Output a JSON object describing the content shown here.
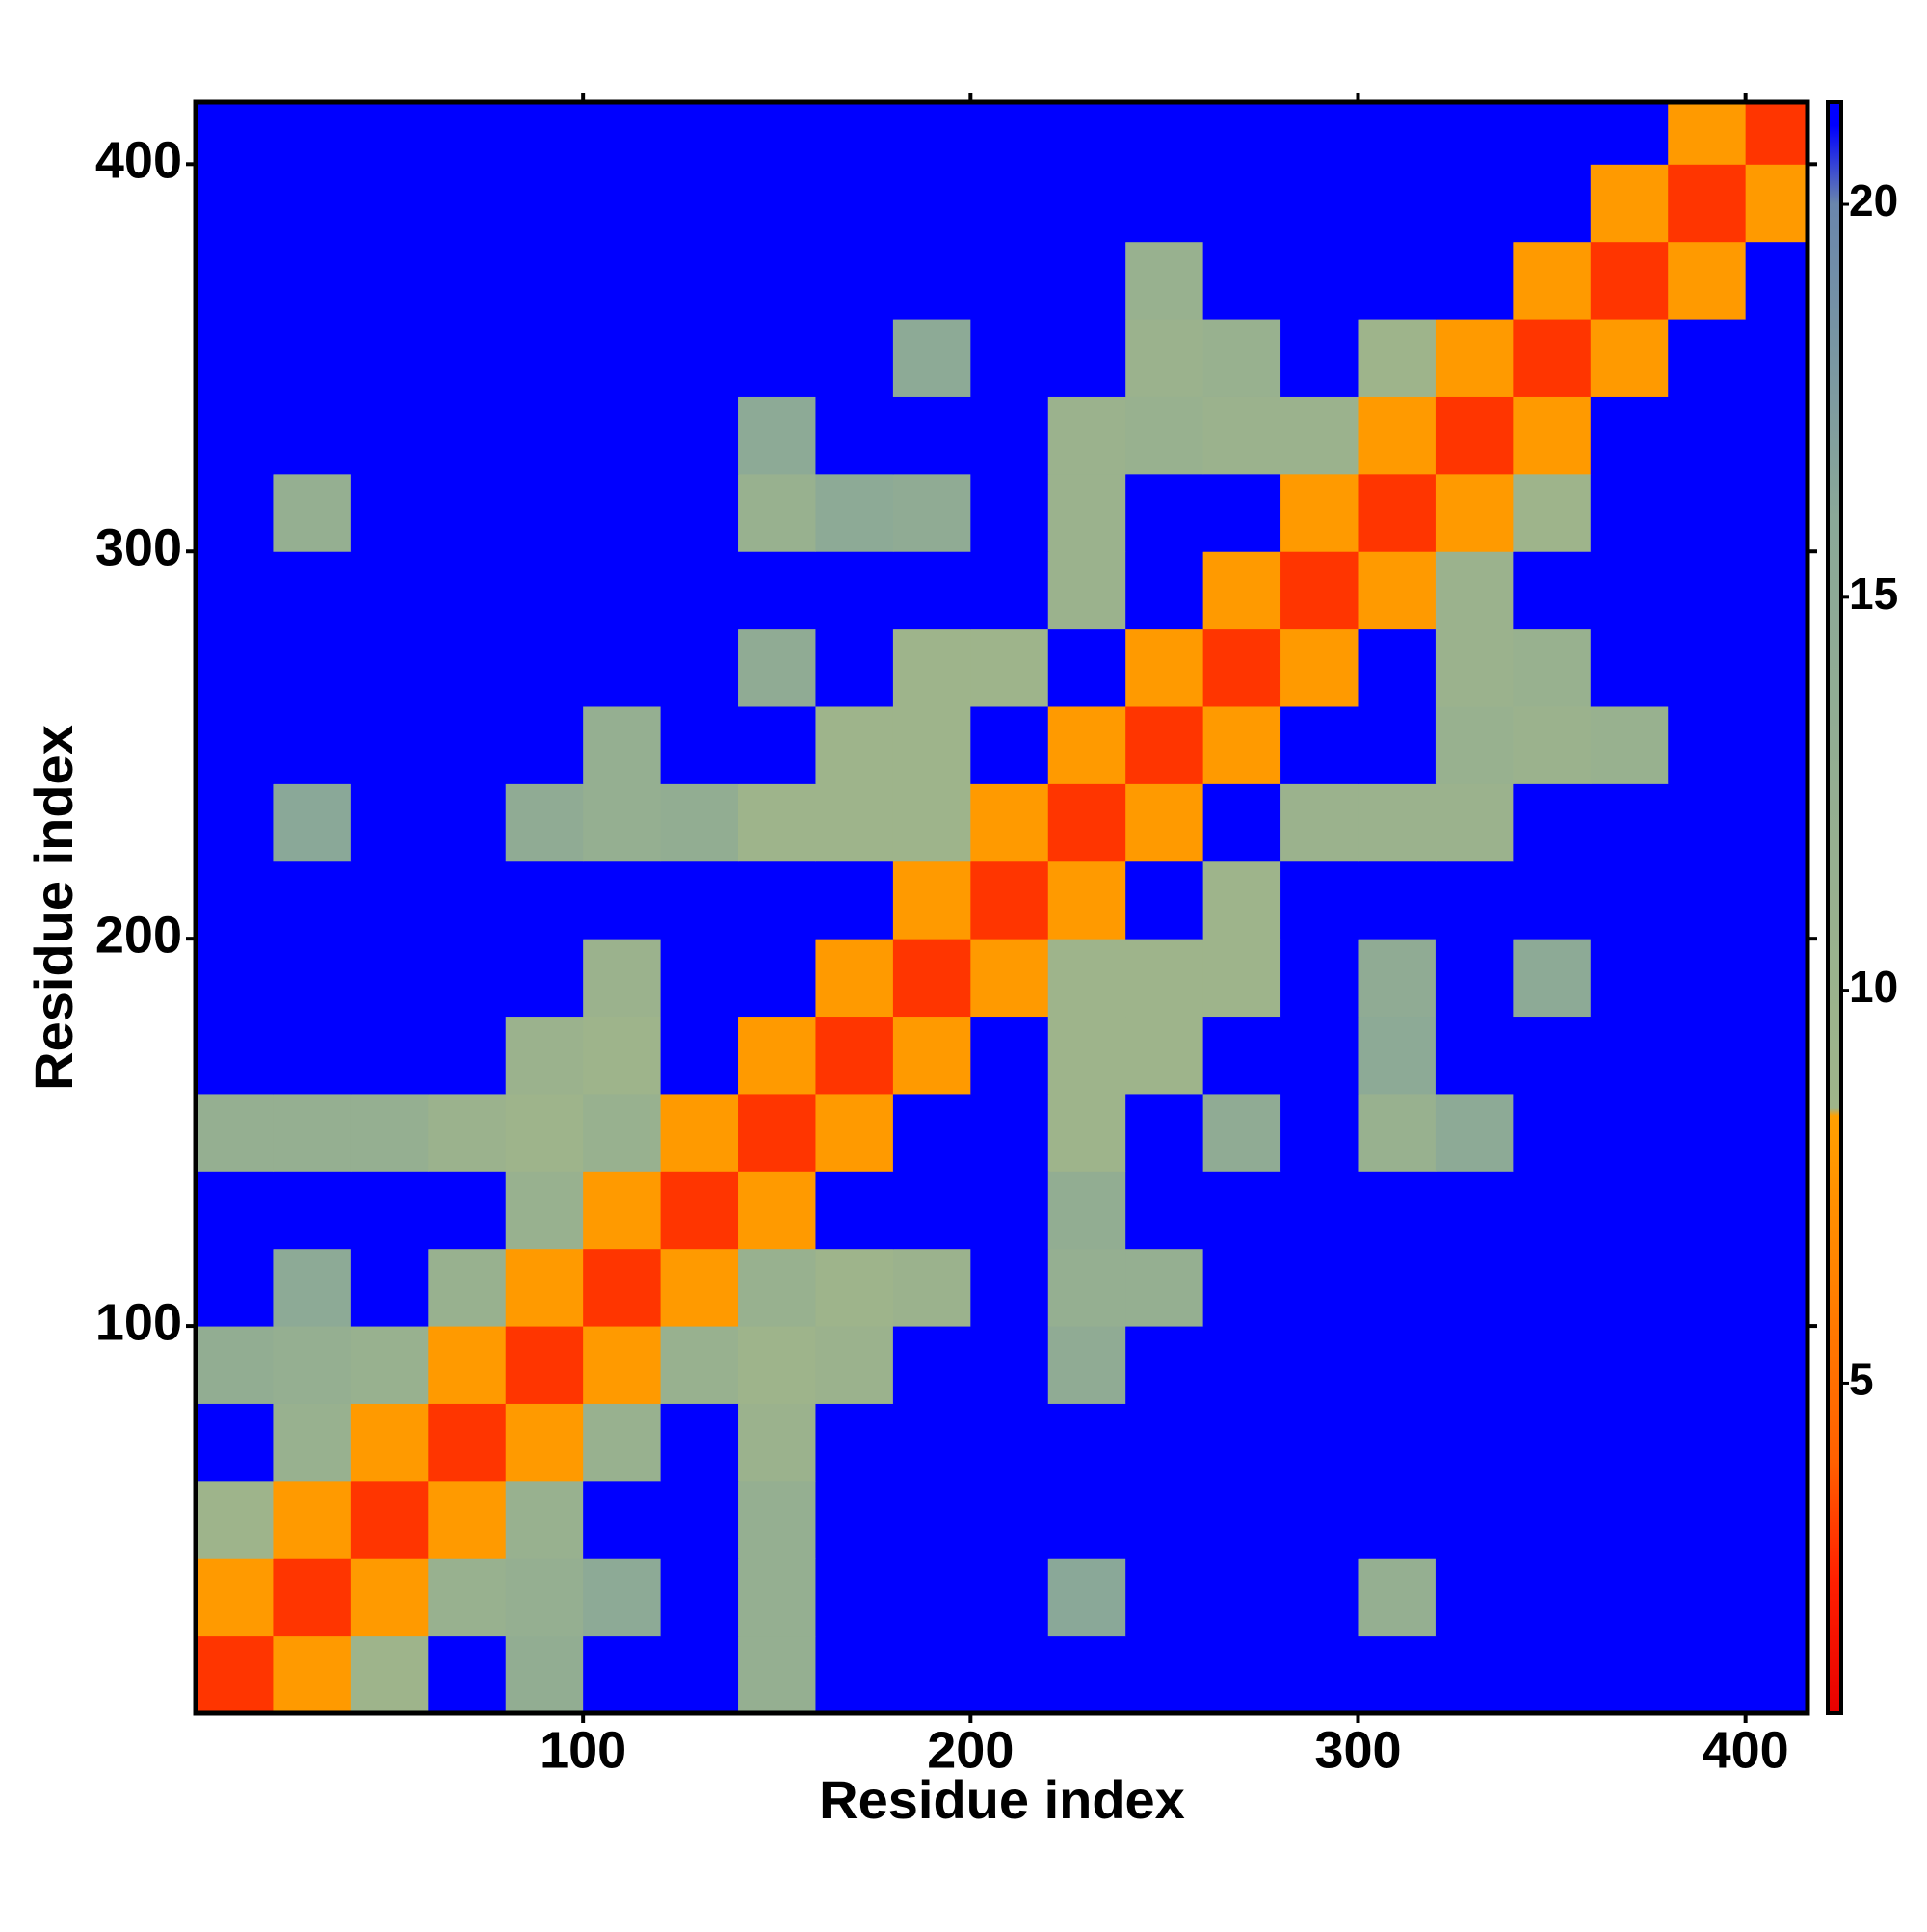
{
  "chart_data": {
    "type": "heatmap",
    "xlabel": "Residue index",
    "ylabel": "Residue index",
    "x": [
      10,
      30,
      50,
      70,
      90,
      110,
      130,
      150,
      170,
      190,
      210,
      230,
      250,
      270,
      290,
      310,
      330,
      350,
      370,
      390,
      410
    ],
    "y": [
      10,
      30,
      50,
      70,
      90,
      110,
      130,
      150,
      170,
      190,
      210,
      230,
      250,
      270,
      290,
      310,
      330,
      350,
      370,
      390,
      410
    ],
    "z": [
      [
        3,
        8,
        9,
        21,
        13,
        21,
        21,
        12,
        21,
        21,
        21,
        21,
        21,
        21,
        21,
        21,
        21,
        21,
        21,
        21,
        21
      ],
      [
        8,
        3,
        8,
        11,
        12,
        15,
        21,
        12,
        21,
        21,
        21,
        16,
        21,
        21,
        21,
        12,
        21,
        21,
        21,
        21,
        21
      ],
      [
        9,
        8,
        3,
        8,
        11,
        21,
        21,
        12,
        21,
        21,
        21,
        21,
        21,
        21,
        21,
        21,
        21,
        21,
        21,
        21,
        21
      ],
      [
        21,
        11,
        8,
        3,
        8,
        11,
        21,
        10,
        21,
        21,
        21,
        21,
        21,
        21,
        21,
        21,
        21,
        21,
        21,
        21,
        21
      ],
      [
        13,
        12,
        11,
        8,
        3,
        8,
        11,
        9,
        10,
        21,
        21,
        14,
        21,
        21,
        21,
        21,
        21,
        21,
        21,
        21,
        21
      ],
      [
        21,
        15,
        21,
        11,
        8,
        3,
        8,
        11,
        9,
        10,
        21,
        12,
        12,
        21,
        21,
        21,
        21,
        21,
        21,
        21,
        21
      ],
      [
        21,
        21,
        21,
        21,
        11,
        8,
        3,
        8,
        21,
        21,
        21,
        13,
        21,
        21,
        21,
        21,
        21,
        21,
        21,
        21,
        21
      ],
      [
        12,
        12,
        12,
        10,
        9,
        11,
        8,
        3,
        8,
        21,
        21,
        9,
        21,
        14,
        21,
        11,
        15,
        21,
        21,
        21,
        21
      ],
      [
        21,
        21,
        21,
        21,
        10,
        9,
        21,
        8,
        3,
        8,
        21,
        9,
        9,
        21,
        21,
        15,
        21,
        21,
        21,
        21,
        21
      ],
      [
        21,
        21,
        21,
        21,
        21,
        10,
        21,
        21,
        8,
        3,
        8,
        9,
        9,
        9,
        21,
        14,
        21,
        15,
        21,
        21,
        21
      ],
      [
        21,
        21,
        21,
        21,
        21,
        21,
        21,
        21,
        21,
        8,
        3,
        8,
        21,
        9,
        21,
        21,
        21,
        21,
        21,
        21,
        21
      ],
      [
        21,
        16,
        21,
        21,
        14,
        12,
        13,
        9,
        9,
        9,
        8,
        3,
        8,
        21,
        10,
        10,
        10,
        21,
        21,
        21,
        21
      ],
      [
        21,
        21,
        21,
        21,
        21,
        12,
        21,
        21,
        9,
        9,
        21,
        8,
        3,
        8,
        21,
        21,
        11,
        10,
        11,
        21,
        21
      ],
      [
        21,
        21,
        21,
        21,
        21,
        21,
        21,
        14,
        21,
        9,
        9,
        21,
        8,
        3,
        8,
        21,
        10,
        11,
        21,
        21,
        21
      ],
      [
        21,
        21,
        21,
        21,
        21,
        21,
        21,
        21,
        21,
        21,
        21,
        10,
        21,
        8,
        3,
        8,
        10,
        21,
        21,
        21,
        21
      ],
      [
        21,
        12,
        21,
        21,
        21,
        21,
        21,
        11,
        15,
        14,
        21,
        10,
        21,
        21,
        8,
        3,
        8,
        9,
        21,
        21,
        21
      ],
      [
        21,
        21,
        21,
        21,
        21,
        21,
        21,
        15,
        21,
        21,
        21,
        10,
        11,
        10,
        10,
        8,
        3,
        8,
        21,
        21,
        21
      ],
      [
        21,
        21,
        21,
        21,
        21,
        21,
        21,
        21,
        21,
        15,
        21,
        21,
        10,
        11,
        21,
        9,
        8,
        3,
        8,
        21,
        21
      ],
      [
        21,
        21,
        21,
        21,
        21,
        21,
        21,
        21,
        21,
        21,
        21,
        21,
        11,
        21,
        21,
        21,
        21,
        8,
        3,
        8,
        21
      ],
      [
        21,
        21,
        21,
        21,
        21,
        21,
        21,
        21,
        21,
        21,
        21,
        21,
        21,
        21,
        21,
        21,
        21,
        21,
        8,
        3,
        8
      ],
      [
        21,
        21,
        21,
        21,
        21,
        21,
        21,
        21,
        21,
        21,
        21,
        21,
        21,
        21,
        21,
        21,
        21,
        21,
        21,
        8,
        3
      ]
    ],
    "xlim": [
      0,
      416
    ],
    "ylim": [
      0,
      416
    ],
    "xticks": [
      100,
      200,
      300,
      400
    ],
    "yticks": [
      100,
      200,
      300,
      400
    ],
    "zlim": [
      0.8,
      21.3
    ],
    "zticks": [
      5,
      10,
      15,
      20
    ],
    "colorscale": [
      [
        0.8,
        "#e80000"
      ],
      [
        2.5,
        "#ff2000"
      ],
      [
        4,
        "#ff6000"
      ],
      [
        8.4,
        "#ffa000"
      ],
      [
        8.5,
        "#9fb58a"
      ],
      [
        16,
        "#8aa898"
      ],
      [
        20,
        "#6a86ac"
      ],
      [
        21,
        "#0000ff"
      ],
      [
        21.3,
        "#0000ff"
      ]
    ]
  }
}
